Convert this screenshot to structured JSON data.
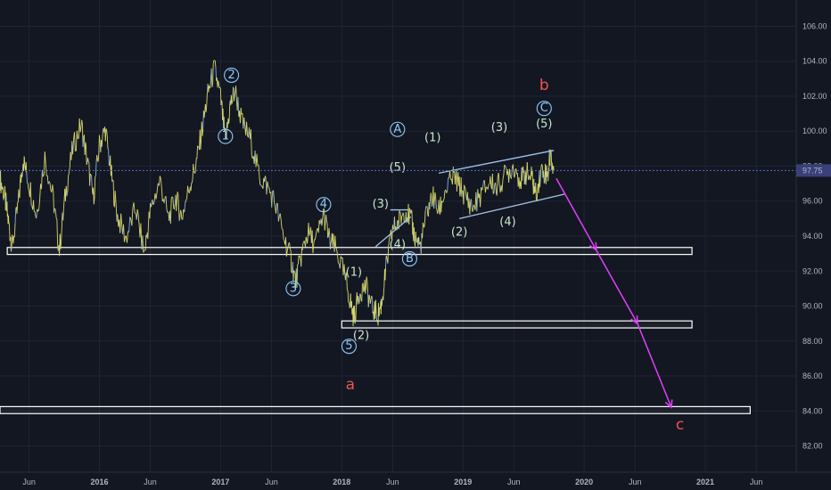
{
  "chart_data": {
    "type": "line",
    "ylim": [
      80.5,
      107.5
    ],
    "y_ticks": [
      "82.00",
      "84.00",
      "86.00",
      "88.00",
      "90.00",
      "92.00",
      "94.00",
      "96.00",
      "98.00",
      "100.00",
      "102.00",
      "104.00",
      "106.00"
    ],
    "x_ticks": [
      {
        "label": "Jun",
        "year": false
      },
      {
        "label": "2016",
        "year": true
      },
      {
        "label": "Jun",
        "year": false
      },
      {
        "label": "2017",
        "year": true
      },
      {
        "label": "Jun",
        "year": false
      },
      {
        "label": "2018",
        "year": true
      },
      {
        "label": "Jun",
        "year": false
      },
      {
        "label": "2019",
        "year": true
      },
      {
        "label": "Jun",
        "year": false
      },
      {
        "label": "2020",
        "year": true
      },
      {
        "label": "Jun",
        "year": false
      },
      {
        "label": "2021",
        "year": true
      },
      {
        "label": "Jun",
        "year": false
      }
    ],
    "x_tick_dates": [
      2015.42,
      2016.0,
      2016.42,
      2017.0,
      2017.42,
      2018.0,
      2018.42,
      2019.0,
      2019.42,
      2020.0,
      2020.42,
      2021.0,
      2021.42
    ],
    "xlim": [
      2015.18,
      2021.75
    ],
    "last_price": "97.75",
    "last_price_value": 97.75,
    "series": [
      {
        "values": [
          [
            2015.18,
            97.3
          ],
          [
            2015.22,
            96.2
          ],
          [
            2015.25,
            94.8
          ],
          [
            2015.28,
            93.4
          ],
          [
            2015.33,
            95.8
          ],
          [
            2015.37,
            98.4
          ],
          [
            2015.42,
            97.0
          ],
          [
            2015.48,
            95.2
          ],
          [
            2015.55,
            98.5
          ],
          [
            2015.62,
            96.1
          ],
          [
            2015.67,
            93.2
          ],
          [
            2015.72,
            96.4
          ],
          [
            2015.78,
            99.0
          ],
          [
            2015.85,
            100.4
          ],
          [
            2015.9,
            98.3
          ],
          [
            2015.95,
            96.2
          ],
          [
            2016.0,
            99.2
          ],
          [
            2016.05,
            100.1
          ],
          [
            2016.1,
            97.4
          ],
          [
            2016.15,
            95.1
          ],
          [
            2016.22,
            93.9
          ],
          [
            2016.3,
            95.6
          ],
          [
            2016.37,
            93.0
          ],
          [
            2016.42,
            95.4
          ],
          [
            2016.5,
            97.2
          ],
          [
            2016.57,
            95.0
          ],
          [
            2016.63,
            96.2
          ],
          [
            2016.68,
            95.1
          ],
          [
            2016.75,
            97.0
          ],
          [
            2016.8,
            98.2
          ],
          [
            2016.85,
            100.2
          ],
          [
            2016.9,
            102.3
          ],
          [
            2016.95,
            103.6
          ],
          [
            2017.0,
            101.9
          ],
          [
            2017.04,
            99.4
          ],
          [
            2017.08,
            101.5
          ],
          [
            2017.12,
            102.3
          ],
          [
            2017.18,
            100.4
          ],
          [
            2017.25,
            99.5
          ],
          [
            2017.32,
            97.4
          ],
          [
            2017.38,
            96.9
          ],
          [
            2017.45,
            95.9
          ],
          [
            2017.52,
            94.0
          ],
          [
            2017.58,
            92.7
          ],
          [
            2017.62,
            91.4
          ],
          [
            2017.67,
            93.0
          ],
          [
            2017.72,
            94.2
          ],
          [
            2017.78,
            93.5
          ],
          [
            2017.85,
            95.3
          ],
          [
            2017.9,
            93.7
          ],
          [
            2017.95,
            93.3
          ],
          [
            2018.02,
            91.8
          ],
          [
            2018.07,
            90.3
          ],
          [
            2018.1,
            89.3
          ],
          [
            2018.15,
            90.9
          ],
          [
            2018.2,
            91.1
          ],
          [
            2018.25,
            89.9
          ],
          [
            2018.3,
            89.5
          ],
          [
            2018.33,
            90.2
          ],
          [
            2018.37,
            92.4
          ],
          [
            2018.42,
            94.4
          ],
          [
            2018.47,
            94.8
          ],
          [
            2018.52,
            95.5
          ],
          [
            2018.57,
            95.0
          ],
          [
            2018.6,
            94.0
          ],
          [
            2018.65,
            93.4
          ],
          [
            2018.7,
            95.3
          ],
          [
            2018.75,
            96.3
          ],
          [
            2018.8,
            95.4
          ],
          [
            2018.85,
            96.5
          ],
          [
            2018.92,
            97.4
          ],
          [
            2018.97,
            96.9
          ],
          [
            2019.02,
            96.3
          ],
          [
            2019.08,
            95.6
          ],
          [
            2019.15,
            96.4
          ],
          [
            2019.22,
            97.1
          ],
          [
            2019.28,
            96.8
          ],
          [
            2019.35,
            97.5
          ],
          [
            2019.42,
            98.0
          ],
          [
            2019.48,
            97.2
          ],
          [
            2019.52,
            97.6
          ],
          [
            2019.57,
            97.3
          ],
          [
            2019.6,
            96.4
          ],
          [
            2019.65,
            97.8
          ],
          [
            2019.7,
            97.5
          ],
          [
            2019.72,
            98.7
          ],
          [
            2019.75,
            97.75
          ]
        ]
      }
    ],
    "zones": [
      {
        "x0": 2015.24,
        "x1": 2020.89,
        "y_top": 93.35,
        "y_bottom": 92.95
      },
      {
        "x0": 2018.0,
        "x1": 2020.89,
        "y_top": 89.15,
        "y_bottom": 88.75
      },
      {
        "x0": 2015.18,
        "x1": 2021.37,
        "y_top": 84.25,
        "y_bottom": 83.85
      }
    ],
    "channel_lines": [
      {
        "x0": 2018.8,
        "y0": 97.6,
        "x1": 2019.75,
        "y1": 98.9
      },
      {
        "x0": 2018.97,
        "y0": 95.0,
        "x1": 2019.84,
        "y1": 96.4
      },
      {
        "x0": 2018.28,
        "y0": 93.4,
        "x1": 2018.57,
        "y1": 95.1
      },
      {
        "x0": 2018.4,
        "y0": 95.5,
        "x1": 2018.55,
        "y1": 95.5
      }
    ],
    "projection": [
      [
        2019.77,
        97.3
      ],
      [
        2020.1,
        93.2
      ],
      [
        2020.44,
        89.0
      ],
      [
        2020.72,
        84.2
      ]
    ],
    "labels": [
      {
        "text": "2",
        "x": 2017.09,
        "y": 103.2,
        "style": "circle",
        "color": "#90caf9"
      },
      {
        "text": "1",
        "x": 2017.04,
        "y": 99.7,
        "style": "circle",
        "color": "#90caf9"
      },
      {
        "text": "3",
        "x": 2017.6,
        "y": 91.0,
        "style": "circle",
        "color": "#90caf9"
      },
      {
        "text": "4",
        "x": 2017.85,
        "y": 95.8,
        "style": "circle",
        "color": "#90caf9"
      },
      {
        "text": "5",
        "x": 2018.06,
        "y": 87.7,
        "style": "circle",
        "color": "#90caf9"
      },
      {
        "text": "(1)",
        "x": 2018.1,
        "y": 91.9,
        "style": "paren",
        "color": "#c8e6c9"
      },
      {
        "text": "(2)",
        "x": 2018.16,
        "y": 88.3,
        "style": "paren",
        "color": "#c8e6c9"
      },
      {
        "text": "(3)",
        "x": 2018.32,
        "y": 95.8,
        "style": "paren",
        "color": "#c8e6c9"
      },
      {
        "text": "(4)",
        "x": 2018.46,
        "y": 93.5,
        "style": "paren",
        "color": "#c8e6c9"
      },
      {
        "text": "(5)",
        "x": 2018.46,
        "y": 97.9,
        "style": "paren",
        "color": "#c8e6c9"
      },
      {
        "text": "A",
        "x": 2018.46,
        "y": 100.1,
        "style": "circle",
        "color": "#90caf9"
      },
      {
        "text": "B",
        "x": 2018.56,
        "y": 92.7,
        "style": "circle",
        "color": "#90caf9"
      },
      {
        "text": "(1)",
        "x": 2018.75,
        "y": 99.6,
        "style": "paren",
        "color": "#c8e6c9"
      },
      {
        "text": "(2)",
        "x": 2018.97,
        "y": 94.2,
        "style": "paren",
        "color": "#c8e6c9"
      },
      {
        "text": "(3)",
        "x": 2019.3,
        "y": 100.2,
        "style": "paren",
        "color": "#c8e6c9"
      },
      {
        "text": "(4)",
        "x": 2019.37,
        "y": 94.8,
        "style": "paren",
        "color": "#c8e6c9"
      },
      {
        "text": "(5)",
        "x": 2019.67,
        "y": 100.4,
        "style": "paren",
        "color": "#c8e6c9"
      },
      {
        "text": "C",
        "x": 2019.67,
        "y": 101.3,
        "style": "circle",
        "color": "#90caf9"
      },
      {
        "text": "b",
        "x": 2019.67,
        "y": 102.6,
        "style": "big",
        "color": "#ef5350"
      },
      {
        "text": "a",
        "x": 2018.07,
        "y": 85.5,
        "style": "big",
        "color": "#ef5350"
      },
      {
        "text": "c",
        "x": 2020.79,
        "y": 83.2,
        "style": "big",
        "color": "#ef5350"
      }
    ],
    "colors": {
      "background": "#131722",
      "grid": "#1f2433",
      "price_line": "#d6d66a",
      "price_line_alt": "#7fb3e6",
      "projection": "#e040fb",
      "zone": "#ffffff",
      "channel": "#9fc5e8",
      "price_badge": "#3a3f7a",
      "dashed": "#5c6bc0"
    }
  }
}
